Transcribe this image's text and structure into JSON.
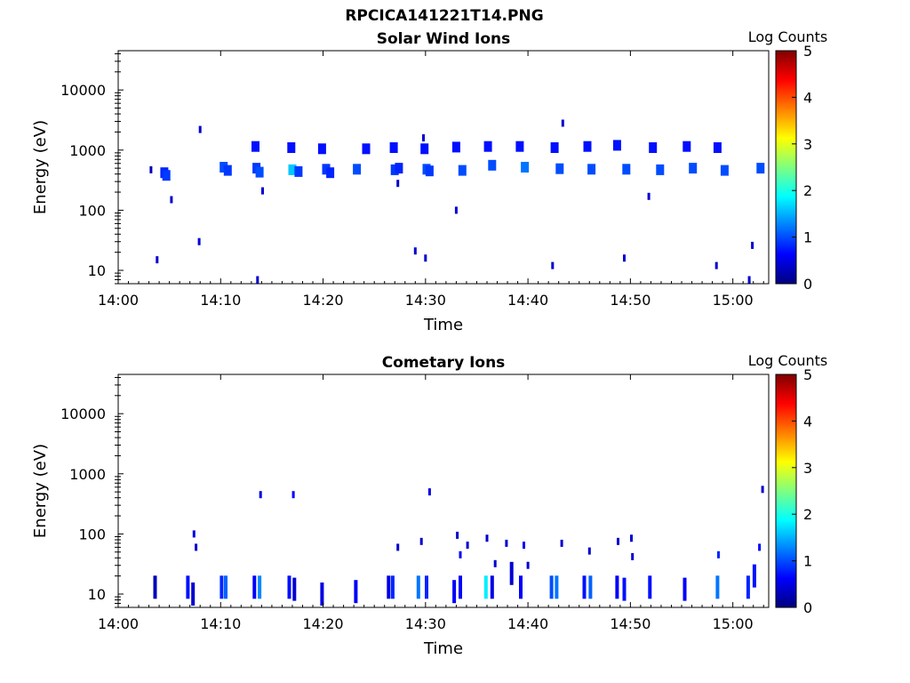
{
  "figure": {
    "title": "RPCICA141221T14.PNG"
  },
  "colormap": {
    "name": "jet",
    "stops": [
      "#00007f",
      "#0000ff",
      "#007fff",
      "#00ffff",
      "#7fff7f",
      "#ffff00",
      "#ff7f00",
      "#ff0000",
      "#7f0000"
    ]
  },
  "chart_data": [
    {
      "type": "heatmap",
      "title": "Solar Wind Ions",
      "xlabel": "Time",
      "ylabel": "Energy (eV)",
      "yscale": "log",
      "x_range_min": [
        0,
        63.5
      ],
      "ylim": [
        6,
        45000
      ],
      "x_ticks": [
        "14:00",
        "14:10",
        "14:20",
        "14:30",
        "14:40",
        "14:50",
        "15:00"
      ],
      "x_tick_minutes": [
        0,
        10,
        20,
        30,
        40,
        50,
        60
      ],
      "y_ticks": [
        "10",
        "100",
        "1000",
        "10000"
      ],
      "y_tick_values": [
        10,
        100,
        1000,
        10000
      ],
      "colorbar": {
        "label": "Log Counts",
        "range": [
          0,
          5
        ],
        "ticks": [
          "0",
          "1",
          "2",
          "3",
          "4",
          "5"
        ]
      },
      "cells": [
        [
          3.2,
          470,
          0.3
        ],
        [
          4.5,
          420,
          0.8
        ],
        [
          4.7,
          380,
          0.9
        ],
        [
          10.3,
          520,
          1.0
        ],
        [
          10.7,
          460,
          0.9
        ],
        [
          13.5,
          500,
          0.9
        ],
        [
          13.8,
          430,
          1.0
        ],
        [
          17.0,
          470,
          1.6
        ],
        [
          17.6,
          440,
          0.9
        ],
        [
          20.3,
          480,
          0.9
        ],
        [
          20.7,
          420,
          0.8
        ],
        [
          23.3,
          480,
          1.0
        ],
        [
          27.0,
          470,
          0.9
        ],
        [
          27.4,
          500,
          0.8
        ],
        [
          30.1,
          480,
          1.0
        ],
        [
          30.4,
          450,
          0.9
        ],
        [
          33.6,
          460,
          1.0
        ],
        [
          36.5,
          560,
          1.0
        ],
        [
          39.7,
          520,
          1.2
        ],
        [
          43.1,
          490,
          1.0
        ],
        [
          46.2,
          480,
          1.0
        ],
        [
          49.6,
          480,
          1.0
        ],
        [
          52.9,
          470,
          1.0
        ],
        [
          56.1,
          500,
          1.0
        ],
        [
          59.2,
          460,
          1.0
        ],
        [
          62.7,
          500,
          1.0
        ],
        [
          13.4,
          1150,
          0.7
        ],
        [
          16.9,
          1100,
          0.7
        ],
        [
          19.9,
          1050,
          0.7
        ],
        [
          24.2,
          1050,
          0.7
        ],
        [
          26.9,
          1100,
          0.7
        ],
        [
          29.9,
          1050,
          0.7
        ],
        [
          33.0,
          1120,
          0.7
        ],
        [
          36.1,
          1150,
          0.7
        ],
        [
          39.2,
          1150,
          0.7
        ],
        [
          42.6,
          1100,
          0.7
        ],
        [
          45.8,
          1150,
          0.7
        ],
        [
          48.7,
          1200,
          0.7
        ],
        [
          52.2,
          1100,
          0.7
        ],
        [
          55.5,
          1150,
          0.7
        ],
        [
          58.5,
          1100,
          0.7
        ],
        [
          8.0,
          2200,
          0.4
        ],
        [
          29.8,
          1600,
          0.4
        ],
        [
          43.4,
          2800,
          0.4
        ],
        [
          14.1,
          210,
          0.4
        ],
        [
          5.2,
          150,
          0.4
        ],
        [
          27.3,
          280,
          0.4
        ],
        [
          51.8,
          170,
          0.4
        ],
        [
          33.0,
          100,
          0.4
        ],
        [
          3.8,
          15,
          0.4
        ],
        [
          7.9,
          30,
          0.4
        ],
        [
          13.6,
          7,
          0.4
        ],
        [
          29.0,
          21,
          0.4
        ],
        [
          30.0,
          16,
          0.4
        ],
        [
          42.4,
          12,
          0.4
        ],
        [
          49.4,
          16,
          0.4
        ],
        [
          58.4,
          12,
          0.4
        ],
        [
          61.9,
          26,
          0.4
        ],
        [
          61.6,
          7,
          0.4
        ]
      ]
    },
    {
      "type": "heatmap",
      "title": "Cometary Ions",
      "xlabel": "Time",
      "ylabel": "Energy (eV)",
      "yscale": "log",
      "x_range_min": [
        0,
        63.5
      ],
      "ylim": [
        6,
        45000
      ],
      "x_ticks": [
        "14:00",
        "14:10",
        "14:20",
        "14:30",
        "14:40",
        "14:50",
        "15:00"
      ],
      "x_tick_minutes": [
        0,
        10,
        20,
        30,
        40,
        50,
        60
      ],
      "y_ticks": [
        "10",
        "100",
        "1000",
        "10000"
      ],
      "y_tick_values": [
        10,
        100,
        1000,
        10000
      ],
      "colorbar": {
        "label": "Log Counts",
        "range": [
          0,
          5
        ],
        "ticks": [
          "0",
          "1",
          "2",
          "3",
          "4",
          "5"
        ]
      },
      "cells": [
        [
          3.6,
          13,
          0.3
        ],
        [
          6.8,
          13,
          0.7
        ],
        [
          7.3,
          10,
          0.4
        ],
        [
          10.1,
          13,
          0.8
        ],
        [
          10.5,
          13,
          1.1
        ],
        [
          13.3,
          13,
          0.6
        ],
        [
          13.8,
          13,
          1.3
        ],
        [
          16.7,
          13,
          0.7
        ],
        [
          17.2,
          12,
          0.4
        ],
        [
          19.9,
          10,
          0.5
        ],
        [
          23.2,
          11,
          0.6
        ],
        [
          26.4,
          13,
          0.5
        ],
        [
          26.8,
          13,
          0.8
        ],
        [
          29.3,
          13,
          1.2
        ],
        [
          30.1,
          13,
          0.8
        ],
        [
          32.8,
          11,
          0.6
        ],
        [
          33.4,
          13,
          0.6
        ],
        [
          35.9,
          13,
          1.8
        ],
        [
          36.5,
          13,
          0.5
        ],
        [
          39.3,
          13,
          0.6
        ],
        [
          42.3,
          13,
          1.0
        ],
        [
          42.8,
          13,
          1.2
        ],
        [
          45.5,
          13,
          0.7
        ],
        [
          46.1,
          13,
          1.1
        ],
        [
          48.7,
          13,
          0.6
        ],
        [
          49.4,
          12,
          0.7
        ],
        [
          51.9,
          13,
          0.7
        ],
        [
          55.3,
          12,
          0.6
        ],
        [
          58.5,
          13,
          1.2
        ],
        [
          61.5,
          13,
          0.8
        ],
        [
          62.1,
          20,
          0.7
        ],
        [
          7.4,
          100,
          0.5
        ],
        [
          7.6,
          60,
          0.4
        ],
        [
          13.9,
          450,
          0.5
        ],
        [
          17.1,
          450,
          0.6
        ],
        [
          30.4,
          500,
          0.5
        ],
        [
          27.3,
          60,
          0.4
        ],
        [
          29.6,
          75,
          0.4
        ],
        [
          33.1,
          95,
          0.4
        ],
        [
          33.4,
          45,
          0.6
        ],
        [
          34.1,
          65,
          0.4
        ],
        [
          36.0,
          85,
          0.4
        ],
        [
          37.9,
          70,
          0.4
        ],
        [
          39.6,
          65,
          0.6
        ],
        [
          40.0,
          30,
          0.4
        ],
        [
          43.3,
          70,
          0.4
        ],
        [
          46.0,
          52,
          0.4
        ],
        [
          48.8,
          75,
          0.4
        ],
        [
          50.1,
          85,
          0.4
        ],
        [
          50.2,
          42,
          0.4
        ],
        [
          58.6,
          45,
          0.8
        ],
        [
          62.6,
          60,
          0.6
        ],
        [
          62.9,
          550,
          0.4
        ],
        [
          36.8,
          32,
          0.4
        ],
        [
          38.4,
          22,
          0.4
        ]
      ]
    }
  ]
}
